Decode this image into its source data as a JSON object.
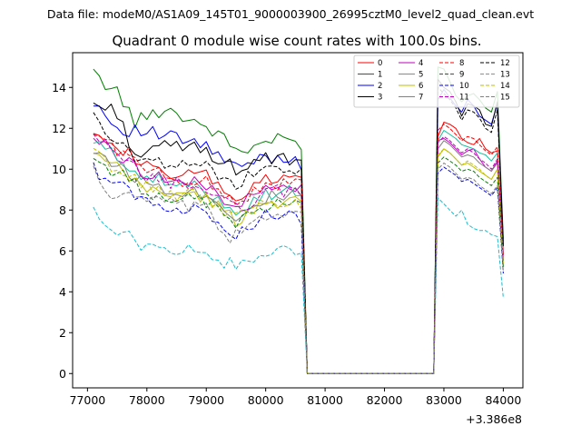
{
  "chart_data": {
    "type": "line",
    "suptitle": "Data file: modeM0/AS1A09_145T01_9000003900_26995cztM0_level2_quad_clean.evt",
    "title": "Quadrant 0 module wise count rates with 100.0s bins.",
    "xlabel": "",
    "ylabel": "",
    "offset_label": "+3.386e8",
    "xlim": [
      76750,
      84330
    ],
    "ylim": [
      -0.7,
      15.7
    ],
    "xticks": [
      77000,
      78000,
      79000,
      80000,
      81000,
      82000,
      83000,
      84000
    ],
    "xtick_labels": [
      "77000",
      "78000",
      "79000",
      "80000",
      "81000",
      "82000",
      "83000",
      "84000"
    ],
    "yticks": [
      0,
      2,
      4,
      6,
      8,
      10,
      12,
      14
    ],
    "ytick_labels": [
      "0",
      "2",
      "4",
      "6",
      "8",
      "10",
      "12",
      "14"
    ],
    "legend_position": "top-right",
    "gap": {
      "start": 80720,
      "end": 82830
    },
    "segment1": {
      "x_start": 77100,
      "x_step": 100,
      "x_end": 80600,
      "drop_x": 80700
    },
    "segment2": {
      "x_start": 82900,
      "x_step": 100,
      "x_end": 83900,
      "end_x": 84000
    },
    "series": [
      {
        "name": "0",
        "color": "#ff0000",
        "dashed": false,
        "anchors": [
          [
            77100,
            12.1
          ],
          [
            77500,
            11.2
          ],
          [
            78000,
            10.1
          ],
          [
            78500,
            9.6
          ],
          [
            79000,
            9.7
          ],
          [
            79500,
            8.5
          ],
          [
            80000,
            9.4
          ],
          [
            80500,
            9.6
          ],
          [
            80600,
            9.5
          ]
        ],
        "seg2": [
          11.6,
          12.3,
          12.2,
          12.0,
          11.5,
          11.3,
          11.2,
          11.5,
          11.0,
          10.8,
          10.9
        ],
        "end": 5.9
      },
      {
        "name": "1",
        "color": "#008000",
        "dashed": false,
        "anchors": [
          [
            77100,
            14.6
          ],
          [
            77500,
            13.8
          ],
          [
            77800,
            12.3
          ],
          [
            78300,
            13.0
          ],
          [
            79000,
            12.1
          ],
          [
            79600,
            10.8
          ],
          [
            80000,
            11.4
          ],
          [
            80500,
            11.4
          ],
          [
            80600,
            11.0
          ]
        ],
        "seg2": [
          15.0,
          14.9,
          14.3,
          13.6,
          13.3,
          13.6,
          13.7,
          13.4,
          13.0,
          12.8,
          13.8
        ],
        "end": 6.6
      },
      {
        "name": "2",
        "color": "#0000ff",
        "dashed": false,
        "anchors": [
          [
            77100,
            13.4
          ],
          [
            77500,
            12.0
          ],
          [
            78000,
            11.8
          ],
          [
            78500,
            11.5
          ],
          [
            79000,
            11.1
          ],
          [
            79500,
            10.0
          ],
          [
            80000,
            10.6
          ],
          [
            80500,
            10.5
          ],
          [
            80600,
            10.3
          ]
        ],
        "seg2": [
          13.4,
          13.9,
          13.5,
          13.1,
          12.8,
          13.4,
          13.1,
          12.6,
          12.4,
          12.2,
          13.2
        ],
        "end": 6.4
      },
      {
        "name": "3",
        "color": "#000000",
        "dashed": false,
        "anchors": [
          [
            77100,
            13.2
          ],
          [
            77500,
            12.8
          ],
          [
            77800,
            10.7
          ],
          [
            78500,
            11.2
          ],
          [
            79000,
            10.9
          ],
          [
            79500,
            10.0
          ],
          [
            80000,
            10.5
          ],
          [
            80500,
            10.4
          ],
          [
            80600,
            10.2
          ]
        ],
        "seg2": [
          14.4,
          14.0,
          13.8,
          13.3,
          12.6,
          13.2,
          13.1,
          12.9,
          12.2,
          12.1,
          13.3
        ],
        "end": 6.3
      },
      {
        "name": "4",
        "color": "#bf00bf",
        "dashed": false,
        "anchors": [
          [
            77100,
            11.6
          ],
          [
            77500,
            10.7
          ],
          [
            78000,
            9.8
          ],
          [
            78500,
            9.4
          ],
          [
            79000,
            9.2
          ],
          [
            79500,
            8.2
          ],
          [
            80000,
            9.0
          ],
          [
            80500,
            9.1
          ],
          [
            80600,
            9.0
          ]
        ],
        "seg2": [
          11.4,
          11.5,
          11.3,
          11.0,
          10.7,
          10.9,
          11.0,
          10.5,
          10.1,
          9.9,
          10.4
        ],
        "end": 5.6
      },
      {
        "name": "5",
        "color": "#1abc9c",
        "dashed": false,
        "anchors": [
          [
            77100,
            11.3
          ],
          [
            77500,
            10.6
          ],
          [
            78000,
            9.6
          ],
          [
            78500,
            9.2
          ],
          [
            79000,
            9.0
          ],
          [
            79500,
            8.0
          ],
          [
            80000,
            8.8
          ],
          [
            80500,
            8.9
          ],
          [
            80600,
            8.7
          ]
        ],
        "seg2": [
          11.4,
          11.9,
          11.7,
          11.5,
          11.2,
          11.1,
          11.0,
          10.8,
          10.7,
          10.4,
          10.8
        ],
        "end": 5.8
      },
      {
        "name": "6",
        "color": "#bfbf00",
        "dashed": false,
        "anchors": [
          [
            77100,
            10.7
          ],
          [
            77500,
            10.0
          ],
          [
            78000,
            9.0
          ],
          [
            78500,
            8.8
          ],
          [
            79000,
            8.6
          ],
          [
            79500,
            7.5
          ],
          [
            80000,
            8.4
          ],
          [
            80500,
            8.5
          ],
          [
            80600,
            8.3
          ]
        ],
        "seg2": [
          10.6,
          11.0,
          10.8,
          10.5,
          10.2,
          10.3,
          10.1,
          9.9,
          9.7,
          9.5,
          10.0
        ],
        "end": 5.3
      },
      {
        "name": "7",
        "color": "#808080",
        "dashed": false,
        "anchors": [
          [
            77100,
            11.0
          ],
          [
            77500,
            10.2
          ],
          [
            78000,
            9.3
          ],
          [
            78500,
            9.0
          ],
          [
            79000,
            8.8
          ],
          [
            79500,
            7.7
          ],
          [
            80000,
            8.6
          ],
          [
            80500,
            8.8
          ],
          [
            80600,
            8.6
          ]
        ],
        "seg2": [
          11.0,
          11.4,
          11.2,
          10.9,
          10.6,
          10.7,
          10.6,
          10.3,
          10.1,
          9.9,
          10.3
        ],
        "end": 5.5
      },
      {
        "name": "8",
        "color": "#ff0000",
        "dashed": true,
        "anchors": [
          [
            77100,
            11.8
          ],
          [
            77500,
            11.0
          ],
          [
            78000,
            9.9
          ],
          [
            78500,
            9.5
          ],
          [
            79000,
            9.4
          ],
          [
            79500,
            8.4
          ],
          [
            80000,
            9.2
          ],
          [
            80500,
            9.3
          ],
          [
            80600,
            9.2
          ]
        ],
        "seg2": [
          11.9,
          12.2,
          12.0,
          11.7,
          11.4,
          11.6,
          11.5,
          11.2,
          10.9,
          10.7,
          11.1
        ],
        "end": 5.8
      },
      {
        "name": "9",
        "color": "#008000",
        "dashed": true,
        "anchors": [
          [
            77100,
            10.5
          ],
          [
            77500,
            9.8
          ],
          [
            78000,
            8.9
          ],
          [
            78500,
            8.6
          ],
          [
            79000,
            8.4
          ],
          [
            79500,
            7.4
          ],
          [
            80000,
            8.2
          ],
          [
            80500,
            8.3
          ],
          [
            80600,
            8.1
          ]
        ],
        "seg2": [
          10.3,
          10.6,
          10.4,
          10.2,
          9.9,
          10.0,
          9.9,
          9.6,
          9.4,
          9.2,
          9.6
        ],
        "end": 5.2
      },
      {
        "name": "10",
        "color": "#0000ff",
        "dashed": true,
        "anchors": [
          [
            77100,
            10.0
          ],
          [
            77500,
            9.3
          ],
          [
            78000,
            8.4
          ],
          [
            78500,
            8.1
          ],
          [
            79000,
            7.9
          ],
          [
            79500,
            6.9
          ],
          [
            80000,
            7.7
          ],
          [
            80500,
            7.8
          ],
          [
            80600,
            7.6
          ]
        ],
        "seg2": [
          9.8,
          10.1,
          9.9,
          9.7,
          9.4,
          9.5,
          9.3,
          9.1,
          8.9,
          8.7,
          9.1
        ],
        "end": 4.9
      },
      {
        "name": "11",
        "color": "#bf00bf",
        "dashed": true,
        "anchors": [
          [
            77100,
            11.5
          ],
          [
            77500,
            10.6
          ],
          [
            78000,
            9.6
          ],
          [
            78500,
            9.3
          ],
          [
            79000,
            9.1
          ],
          [
            79500,
            8.0
          ],
          [
            80000,
            8.9
          ],
          [
            80500,
            9.0
          ],
          [
            80600,
            8.8
          ]
        ],
        "seg2": [
          11.3,
          11.6,
          11.4,
          11.1,
          10.8,
          11.0,
          10.8,
          10.5,
          10.3,
          10.0,
          10.5
        ],
        "end": 5.6
      },
      {
        "name": "12",
        "color": "#000000",
        "dashed": true,
        "anchors": [
          [
            77100,
            13.0
          ],
          [
            77300,
            11.5
          ],
          [
            77600,
            11.0
          ],
          [
            78000,
            10.3
          ],
          [
            78500,
            10.4
          ],
          [
            79000,
            10.1
          ],
          [
            79500,
            9.3
          ],
          [
            80000,
            9.9
          ],
          [
            80500,
            10.0
          ],
          [
            80600,
            9.8
          ]
        ],
        "seg2": [
          14.0,
          13.7,
          13.4,
          13.0,
          12.4,
          12.9,
          12.8,
          12.5,
          12.0,
          11.8,
          12.9
        ],
        "end": 6.2
      },
      {
        "name": "13",
        "color": "#17becf",
        "dashed": true,
        "anchors": [
          [
            77100,
            7.8
          ],
          [
            77500,
            7.1
          ],
          [
            78000,
            6.1
          ],
          [
            78500,
            6.1
          ],
          [
            79000,
            5.9
          ],
          [
            79500,
            5.2
          ],
          [
            80000,
            5.8
          ],
          [
            80500,
            6.1
          ],
          [
            80600,
            6.0
          ]
        ],
        "seg2": [
          8.6,
          8.3,
          8.0,
          7.7,
          8.0,
          7.3,
          7.1,
          7.0,
          7.0,
          6.8,
          6.7
        ],
        "end": 3.7
      },
      {
        "name": "14",
        "color": "#bfbf00",
        "dashed": true,
        "anchors": [
          [
            77100,
            10.8
          ],
          [
            77500,
            10.0
          ],
          [
            78000,
            9.1
          ],
          [
            78500,
            8.8
          ],
          [
            79000,
            8.6
          ],
          [
            79500,
            7.6
          ],
          [
            80000,
            8.4
          ],
          [
            80500,
            8.5
          ],
          [
            80600,
            8.3
          ]
        ],
        "seg2": [
          10.7,
          11.0,
          10.8,
          10.5,
          10.2,
          10.4,
          10.2,
          10.0,
          9.7,
          9.5,
          10.0
        ],
        "end": 5.4
      },
      {
        "name": "15",
        "color": "#808080",
        "dashed": true,
        "anchors": [
          [
            77100,
            10.2
          ],
          [
            77300,
            8.8
          ],
          [
            78000,
            8.5
          ],
          [
            78500,
            8.2
          ],
          [
            79000,
            8.0
          ],
          [
            79400,
            6.6
          ],
          [
            80000,
            7.8
          ],
          [
            80500,
            7.9
          ],
          [
            80600,
            7.7
          ]
        ],
        "seg2": [
          10.0,
          10.3,
          10.1,
          9.8,
          9.5,
          9.6,
          9.5,
          9.2,
          9.0,
          8.8,
          9.2
        ],
        "end": 5.0
      }
    ]
  }
}
